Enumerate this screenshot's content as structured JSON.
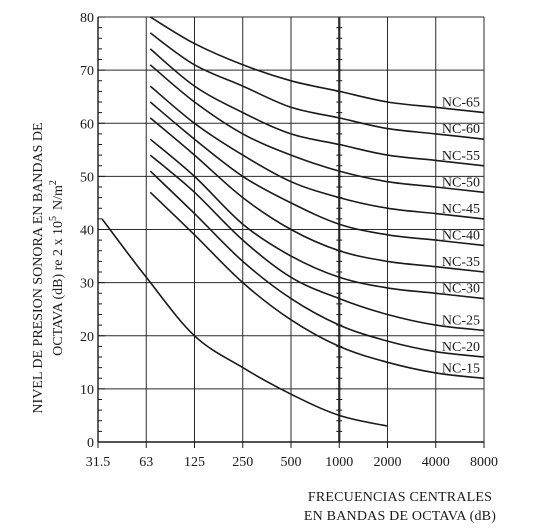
{
  "chart_data": {
    "type": "line",
    "x_categories": [
      "31.5",
      "63",
      "125",
      "250",
      "500",
      "1000",
      "2000",
      "4000",
      "8000"
    ],
    "ylim": [
      0,
      80
    ],
    "yticks": [
      "0",
      "10",
      "20",
      "30",
      "40",
      "50",
      "60",
      "70",
      "80"
    ],
    "ylabel_line1": "NIVEL DE PRESION SONORA EN BANDAS DE",
    "ylabel_line2": "OCTAVA (dB) re 2 x 10",
    "ylabel_sup": "5",
    "ylabel_unit": "N/m",
    "ylabel_unit_sup": "2",
    "xlabel_line1": "FRECUENCIAS CENTRALES",
    "xlabel_line2": "EN BANDAS DE OCTAVA (dB)",
    "grid": true,
    "series": [
      {
        "name": "NC-65",
        "values": [
          null,
          80,
          75,
          71,
          68,
          66,
          64,
          63,
          62
        ]
      },
      {
        "name": "NC-60",
        "values": [
          null,
          77,
          71,
          67,
          63,
          61,
          59,
          58,
          57
        ]
      },
      {
        "name": "NC-55",
        "values": [
          null,
          74,
          67,
          62,
          58,
          56,
          54,
          53,
          52
        ]
      },
      {
        "name": "NC-50",
        "values": [
          null,
          71,
          64,
          58,
          54,
          51,
          49,
          48,
          47
        ]
      },
      {
        "name": "NC-45",
        "values": [
          null,
          67,
          60,
          54,
          49,
          46,
          44,
          43,
          42
        ]
      },
      {
        "name": "NC-40",
        "values": [
          null,
          64,
          57,
          50,
          45,
          41,
          39,
          38,
          37
        ]
      },
      {
        "name": "NC-35",
        "values": [
          null,
          61,
          54,
          46,
          40,
          36,
          34,
          33,
          32
        ]
      },
      {
        "name": "NC-30",
        "values": [
          null,
          57,
          50,
          41,
          35,
          31,
          29,
          28,
          27
        ]
      },
      {
        "name": "NC-25",
        "values": [
          null,
          54,
          47,
          38,
          31,
          27,
          24,
          22,
          21
        ]
      },
      {
        "name": "NC-20",
        "values": [
          null,
          51,
          43,
          34,
          27,
          22,
          19,
          17,
          16
        ]
      },
      {
        "name": "NC-15",
        "values": [
          null,
          47,
          39,
          30,
          23,
          18,
          15,
          13,
          12
        ]
      },
      {
        "name": "",
        "values": [
          42,
          31,
          20,
          14,
          9,
          5,
          3,
          null,
          null
        ]
      }
    ]
  }
}
